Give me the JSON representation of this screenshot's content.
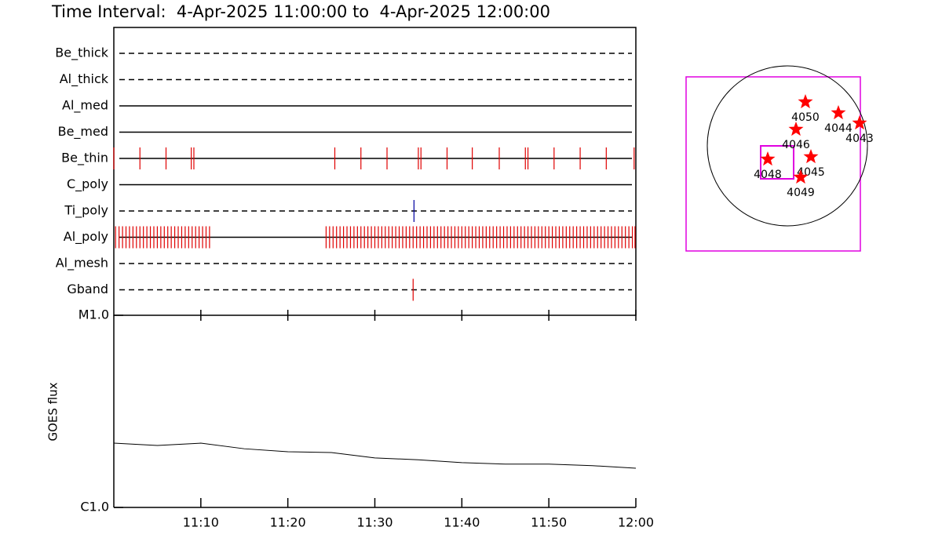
{
  "chart_data": [
    {
      "type": "timeline",
      "title": "Time Interval:  4-Apr-2025 11:00:00 to  4-Apr-2025 12:00:00",
      "xlim": [
        0,
        60
      ],
      "xticks": [
        10,
        20,
        30,
        40,
        50,
        60
      ],
      "rows": [
        {
          "name": "Be_thick",
          "style": "dashed",
          "color": "#e00000",
          "events": []
        },
        {
          "name": "Al_thick",
          "style": "dashed",
          "color": "#e00000",
          "events": []
        },
        {
          "name": "Al_med",
          "style": "solid",
          "color": "#e00000",
          "events": []
        },
        {
          "name": "Be_med",
          "style": "solid",
          "color": "#e00000",
          "events": []
        },
        {
          "name": "Be_thin",
          "style": "solid",
          "color": "#e00000",
          "events": [
            0.0,
            3.0,
            6.0,
            8.9,
            9.2,
            25.4,
            28.4,
            31.4,
            35.0,
            35.3,
            38.3,
            41.2,
            44.3,
            47.3,
            47.6,
            50.6,
            53.6,
            56.6,
            59.8
          ]
        },
        {
          "name": "C_poly",
          "style": "solid",
          "color": "#e00000",
          "events": []
        },
        {
          "name": "Ti_poly",
          "style": "dashed",
          "color": "#0000a0",
          "events": [
            34.5
          ]
        },
        {
          "name": "Al_poly",
          "style": "solid",
          "color": "#e00000",
          "events": [
            0.2,
            0.6,
            1.0,
            1.4,
            1.8,
            2.2,
            2.6,
            3.0,
            3.4,
            3.8,
            4.2,
            4.6,
            5.0,
            5.4,
            5.8,
            6.2,
            6.6,
            7.0,
            7.4,
            7.8,
            8.2,
            8.6,
            9.0,
            9.4,
            9.8,
            10.2,
            10.6,
            11.0,
            24.4,
            24.8,
            25.2,
            25.6,
            26.0,
            26.4,
            26.8,
            27.2,
            27.6,
            28.0,
            28.4,
            28.8,
            29.2,
            29.6,
            30.0,
            30.4,
            30.8,
            31.2,
            31.6,
            32.0,
            32.4,
            32.8,
            33.2,
            33.6,
            34.0,
            34.4,
            34.8,
            35.2,
            35.6,
            36.0,
            36.4,
            36.8,
            37.2,
            37.6,
            38.0,
            38.4,
            38.8,
            39.2,
            39.6,
            40.0,
            40.4,
            40.8,
            41.2,
            41.6,
            42.0,
            42.4,
            42.8,
            43.2,
            43.6,
            44.0,
            44.4,
            44.8,
            45.2,
            45.6,
            46.0,
            46.4,
            46.8,
            47.2,
            47.6,
            48.0,
            48.4,
            48.8,
            49.2,
            49.6,
            50.0,
            50.4,
            50.8,
            51.2,
            51.6,
            52.0,
            52.4,
            52.8,
            53.2,
            53.6,
            54.0,
            54.4,
            54.8,
            55.2,
            55.6,
            56.0,
            56.4,
            56.8,
            57.2,
            57.6,
            58.0,
            58.4,
            58.8,
            59.2,
            59.6,
            59.9
          ]
        },
        {
          "name": "Al_mesh",
          "style": "dashed",
          "color": "#e00000",
          "events": []
        },
        {
          "name": "Gband",
          "style": "dashed",
          "color": "#e00000",
          "events": [
            34.4
          ]
        }
      ]
    },
    {
      "type": "line",
      "y_label": "GOES flux",
      "x": [
        0,
        5,
        10,
        15,
        20,
        25,
        30,
        35,
        40,
        45,
        50,
        55,
        60
      ],
      "values": [
        2.16e-06,
        2.1e-06,
        2.16e-06,
        2.02e-06,
        1.95e-06,
        1.93e-06,
        1.81e-06,
        1.77e-06,
        1.71e-06,
        1.68e-06,
        1.68e-06,
        1.65e-06,
        1.6e-06
      ],
      "color": "#000000",
      "xlim": [
        0,
        60
      ],
      "xticks": [
        {
          "value": 10,
          "label": "11:10"
        },
        {
          "value": 20,
          "label": "11:20"
        },
        {
          "value": 30,
          "label": "11:30"
        },
        {
          "value": 40,
          "label": "11:40"
        },
        {
          "value": 50,
          "label": "11:50"
        },
        {
          "value": 60,
          "label": "12:00"
        }
      ],
      "ylim": [
        1e-06,
        1e-05
      ],
      "yticks": [
        {
          "value": 1e-06,
          "label": "C1.0"
        },
        {
          "value": 1e-05,
          "label": "M1.0"
        }
      ],
      "log_scale": true
    },
    {
      "type": "map",
      "regions": [
        "4050",
        "4044",
        "4043",
        "4046",
        "4045",
        "4048",
        "4049"
      ],
      "marker_color": "#ff0000"
    }
  ]
}
